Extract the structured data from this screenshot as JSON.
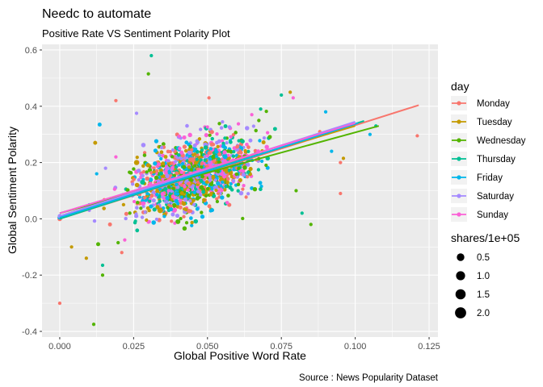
{
  "chart_data": {
    "type": "scatter",
    "title": "Needc to automate",
    "subtitle": "Positive Rate VS Sentiment Polarity Plot",
    "caption": "Source : News Popularity Dataset",
    "xlabel": "Global Positive Word Rate",
    "ylabel": "Global Sentiment Polarity",
    "xlim": [
      -0.006,
      0.128
    ],
    "ylim": [
      -0.42,
      0.62
    ],
    "x_ticks": [
      0.0,
      0.025,
      0.05,
      0.075,
      0.1,
      0.125
    ],
    "x_tick_labels": [
      "0.000",
      "0.025",
      "0.050",
      "0.075",
      "0.100",
      "0.125"
    ],
    "y_ticks": [
      -0.4,
      -0.2,
      0.0,
      0.2,
      0.4,
      0.6
    ],
    "y_tick_labels": [
      "-0.4",
      "-0.2",
      "0.0",
      "0.2",
      "0.4",
      "0.6"
    ],
    "grid": true,
    "panel_background": "#ebebeb",
    "grid_color": "#ffffff",
    "legend_position": "right",
    "color_legend": {
      "title": "day",
      "entries": [
        {
          "name": "Monday",
          "color": "#F8766D"
        },
        {
          "name": "Tuesday",
          "color": "#C49A00"
        },
        {
          "name": "Wednesday",
          "color": "#53B400"
        },
        {
          "name": "Thursday",
          "color": "#00C094"
        },
        {
          "name": "Friday",
          "color": "#00B6EB"
        },
        {
          "name": "Saturday",
          "color": "#A58AFF"
        },
        {
          "name": "Sunday",
          "color": "#FB61D7"
        }
      ]
    },
    "size_legend": {
      "title": "shares/1e+05",
      "values": [
        0.5,
        1.0,
        1.5,
        2.0
      ],
      "labels": [
        "0.5",
        "1.0",
        "1.5",
        "2.0"
      ]
    },
    "regression_lines": [
      {
        "series": "Monday",
        "x": [
          0.0,
          0.1215
        ],
        "y": [
          0.0,
          0.404
        ]
      },
      {
        "series": "Tuesday",
        "x": [
          0.0,
          0.1
        ],
        "y": [
          0.02,
          0.33
        ]
      },
      {
        "series": "Wednesday",
        "x": [
          0.0,
          0.108
        ],
        "y": [
          0.02,
          0.33
        ]
      },
      {
        "series": "Thursday",
        "x": [
          0.0,
          0.103
        ],
        "y": [
          0.0,
          0.348
        ]
      },
      {
        "series": "Friday",
        "x": [
          0.0,
          0.101
        ],
        "y": [
          0.005,
          0.34
        ]
      },
      {
        "series": "Saturday",
        "x": [
          0.0,
          0.1
        ],
        "y": [
          0.01,
          0.345
        ]
      },
      {
        "series": "Sunday",
        "x": [
          0.0,
          0.1
        ],
        "y": [
          0.02,
          0.34
        ]
      }
    ],
    "notable_points": [
      {
        "series": "Monday",
        "x": 0.0,
        "y": -0.3,
        "size": 0.02
      },
      {
        "series": "Monday",
        "x": 0.121,
        "y": 0.295,
        "size": 0.02
      },
      {
        "series": "Monday",
        "x": 0.019,
        "y": 0.42,
        "size": 0.02
      },
      {
        "series": "Thursday",
        "x": 0.031,
        "y": 0.58,
        "size": 0.02
      },
      {
        "series": "Wednesday",
        "x": 0.03,
        "y": 0.515,
        "size": 0.02
      },
      {
        "series": "Wednesday",
        "x": 0.0115,
        "y": -0.375,
        "size": 0.02
      },
      {
        "series": "Wednesday",
        "x": 0.0145,
        "y": -0.2,
        "size": 0.02
      },
      {
        "series": "Tuesday",
        "x": 0.009,
        "y": -0.14,
        "size": 0.02
      },
      {
        "series": "Tuesday",
        "x": 0.012,
        "y": 0.27,
        "size": 0.05
      },
      {
        "series": "Friday",
        "x": 0.0135,
        "y": 0.335,
        "size": 0.05
      },
      {
        "series": "Saturday",
        "x": 0.026,
        "y": 0.375,
        "size": 0.02
      },
      {
        "series": "Thursday",
        "x": 0.075,
        "y": 0.44,
        "size": 0.02
      },
      {
        "series": "Tuesday",
        "x": 0.078,
        "y": 0.45,
        "size": 0.02
      },
      {
        "series": "Sunday",
        "x": 0.079,
        "y": 0.43,
        "size": 0.02
      },
      {
        "series": "Friday",
        "x": 0.09,
        "y": 0.38,
        "size": 0.02
      },
      {
        "series": "Thursday",
        "x": 0.107,
        "y": 0.33,
        "size": 0.02
      },
      {
        "series": "Friday",
        "x": 0.105,
        "y": 0.3,
        "size": 0.02
      },
      {
        "series": "Tuesday",
        "x": 0.096,
        "y": 0.215,
        "size": 0.02
      },
      {
        "series": "Monday",
        "x": 0.095,
        "y": 0.09,
        "size": 0.02
      },
      {
        "series": "Saturday",
        "x": 0.0155,
        "y": 0.18,
        "size": 0.02
      },
      {
        "series": "Friday",
        "x": 0.0125,
        "y": 0.16,
        "size": 0.02
      },
      {
        "series": "Sunday",
        "x": 0.019,
        "y": 0.22,
        "size": 0.02
      },
      {
        "series": "Wednesday",
        "x": 0.0365,
        "y": 0.04,
        "size": 0.02
      },
      {
        "series": "Tuesday",
        "x": 0.034,
        "y": 0.03,
        "size": 0.2
      },
      {
        "series": "Tuesday",
        "x": 0.026,
        "y": 0.2,
        "size": 0.15
      },
      {
        "series": "Monday",
        "x": 0.045,
        "y": 0.21,
        "size": 0.14
      },
      {
        "series": "Thursday",
        "x": 0.028,
        "y": 0.13,
        "size": 0.12
      },
      {
        "series": "Wednesday",
        "x": 0.04,
        "y": -0.01,
        "size": 0.12
      },
      {
        "series": "Friday",
        "x": 0.056,
        "y": 0.22,
        "size": 0.1
      },
      {
        "series": "Sunday",
        "x": 0.05,
        "y": 0.16,
        "size": 0.1
      },
      {
        "series": "Monday",
        "x": 0.0,
        "y": 0.0,
        "size": 0.1
      },
      {
        "series": "Friday",
        "x": 0.0,
        "y": 0.005,
        "size": 0.08
      },
      {
        "series": "Saturday",
        "x": 0.0,
        "y": 0.01,
        "size": 0.06
      },
      {
        "series": "Wednesday",
        "x": 0.013,
        "y": -0.09,
        "size": 0.05
      },
      {
        "series": "Monday",
        "x": 0.017,
        "y": -0.02,
        "size": 0.05
      },
      {
        "series": "Tuesday",
        "x": 0.004,
        "y": -0.1,
        "size": 0.02
      },
      {
        "series": "Thursday",
        "x": 0.0145,
        "y": -0.165,
        "size": 0.02
      },
      {
        "series": "Monday",
        "x": 0.021,
        "y": -0.12,
        "size": 0.02
      },
      {
        "series": "Sunday",
        "x": 0.022,
        "y": -0.075,
        "size": 0.02
      },
      {
        "series": "Monday",
        "x": 0.095,
        "y": 0.2,
        "size": 0.02
      },
      {
        "series": "Thursday",
        "x": 0.082,
        "y": 0.02,
        "size": 0.02
      },
      {
        "series": "Wednesday",
        "x": 0.085,
        "y": -0.02,
        "size": 0.02
      },
      {
        "series": "Friday",
        "x": 0.092,
        "y": 0.24,
        "size": 0.02
      },
      {
        "series": "Monday",
        "x": 0.088,
        "y": 0.31,
        "size": 0.02
      },
      {
        "series": "Sunday",
        "x": 0.065,
        "y": 0.37,
        "size": 0.02
      },
      {
        "series": "Thursday",
        "x": 0.068,
        "y": 0.39,
        "size": 0.02
      },
      {
        "series": "Wednesday",
        "x": 0.08,
        "y": 0.1,
        "size": 0.02
      },
      {
        "series": "Friday",
        "x": 0.01,
        "y": 0.05,
        "size": 0.02
      },
      {
        "series": "Saturday",
        "x": 0.01,
        "y": 0.03,
        "size": 0.02
      },
      {
        "series": "Monday",
        "x": 0.0505,
        "y": 0.43,
        "size": 0.02
      }
    ],
    "point_cloud": {
      "note_free": true,
      "count": 1300,
      "x_center": 0.045,
      "x_spread": 0.014,
      "y_intercept": 0.02,
      "y_slope": 3.0,
      "y_spread": 0.085,
      "size_min": 0.02,
      "size_max": 0.09
    }
  }
}
